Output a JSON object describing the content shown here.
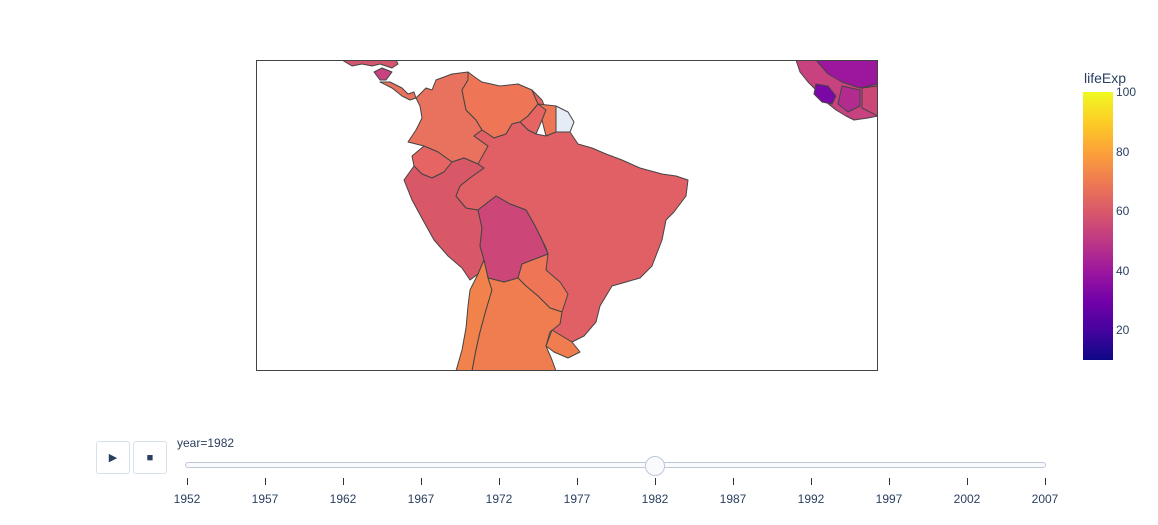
{
  "map": {
    "countries": [
      {
        "name": "Brazil",
        "lifeExp": 63.3
      },
      {
        "name": "Bolivia",
        "lifeExp": 53.9
      },
      {
        "name": "Peru",
        "lifeExp": 61.4
      },
      {
        "name": "Ecuador",
        "lifeExp": 64.3
      },
      {
        "name": "Colombia",
        "lifeExp": 66.7
      },
      {
        "name": "Venezuela",
        "lifeExp": 68.6
      },
      {
        "name": "Guyana",
        "lifeExp": 61.0
      },
      {
        "name": "Suriname",
        "lifeExp": 67.0
      },
      {
        "name": "French Guiana",
        "lifeExp": null
      },
      {
        "name": "Paraguay",
        "lifeExp": 66.9
      },
      {
        "name": "Uruguay",
        "lifeExp": 70.8
      },
      {
        "name": "Argentina",
        "lifeExp": 69.9
      },
      {
        "name": "Chile",
        "lifeExp": 70.6
      },
      {
        "name": "Panama",
        "lifeExp": 70.8
      },
      {
        "name": "Costa Rica",
        "lifeExp": 73.4
      },
      {
        "name": "Nicaragua",
        "lifeExp": 59.3
      },
      {
        "name": "West Africa",
        "lifeExp": 45.0
      }
    ],
    "missing_color": "#e5ecf6",
    "border_color": "#444444",
    "frame_color": "#444444"
  },
  "colorbar": {
    "title": "lifeExp",
    "range": [
      10,
      100
    ],
    "ticks": [
      "100",
      "80",
      "60",
      "40",
      "20"
    ],
    "colorscale": "plasma"
  },
  "animation": {
    "play_icon": "▶",
    "stop_icon": "■",
    "current_label": "year=1982",
    "current_year": 1982,
    "years": [
      "1952",
      "1957",
      "1962",
      "1967",
      "1972",
      "1977",
      "1982",
      "1987",
      "1992",
      "1997",
      "2002",
      "2007"
    ]
  }
}
